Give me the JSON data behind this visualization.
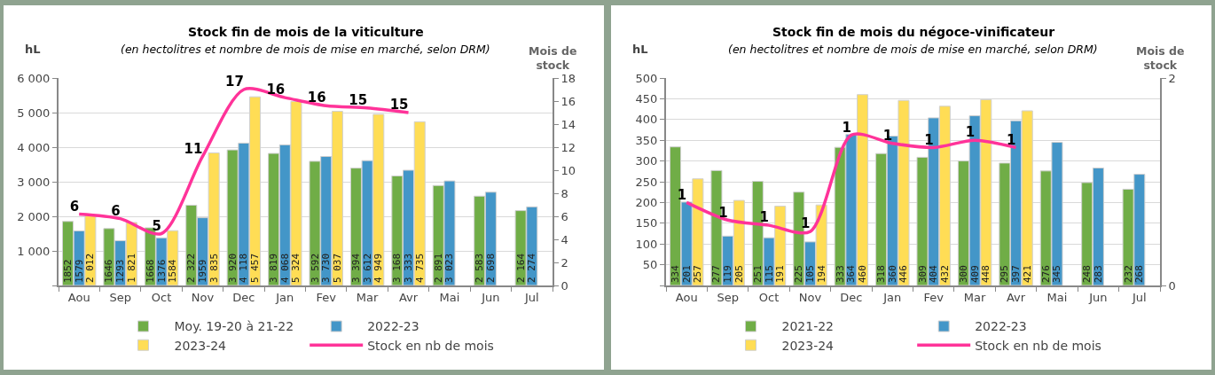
{
  "chart_data": [
    {
      "type": "bar",
      "title": "Stock fin de mois de la viticulture",
      "subtitle": "(en hectolitres et nombre de mois de mise en marché, selon DRM)",
      "ylabel": "hL",
      "y2label": "Mois de stock",
      "categories": [
        "Aou",
        "Sep",
        "Oct",
        "Nov",
        "Dec",
        "Jan",
        "Fev",
        "Mar",
        "Avr",
        "Mai",
        "Jun",
        "Jul"
      ],
      "series": [
        {
          "name": "Moy. 19-20 à 21-22",
          "color": "#70ad47",
          "values": [
            1852,
            1646,
            1668,
            2322,
            3920,
            3819,
            3592,
            3394,
            3168,
            2891,
            2583,
            2164
          ],
          "value_labels": [
            "1852",
            "1646",
            "1668",
            "2 322",
            "3 920",
            "3 819",
            "3 592",
            "3 394",
            "3 168",
            "2 891",
            "2 583",
            "2 164"
          ]
        },
        {
          "name": "2022-23",
          "color": "#4396c8",
          "values": [
            1579,
            1293,
            1376,
            1959,
            4118,
            4068,
            3730,
            3612,
            3333,
            3023,
            2698,
            2274
          ],
          "value_labels": [
            "1579",
            "1293",
            "1376",
            "1959",
            "4 118",
            "4 068",
            "3 730",
            "3 612",
            "3 333",
            "3 023",
            "2 698",
            "2 274"
          ]
        },
        {
          "name": "2023-24",
          "color": "#ffdd55",
          "values": [
            2012,
            1821,
            1584,
            3835,
            5457,
            5324,
            5037,
            4949,
            4735,
            null,
            null,
            null
          ],
          "value_labels": [
            "2 012",
            "1 821",
            "1584",
            "3 835",
            "5 457",
            "5 324",
            "5 037",
            "4 949",
            "4 735",
            null,
            null,
            null
          ]
        },
        {
          "name": "Stock en nb de mois",
          "type": "line",
          "axis": "y2",
          "color": "#ff3399",
          "values": [
            6.2,
            5.8,
            4.5,
            11.2,
            17,
            16.3,
            15.6,
            15.4,
            15,
            null,
            null,
            null
          ],
          "value_labels": [
            "6",
            "6",
            "5",
            "11",
            "17",
            "16",
            "16",
            "15",
            "15",
            null,
            null,
            null
          ]
        }
      ],
      "ylim": [
        0,
        6000
      ],
      "yticks": [
        {
          "value": 0,
          "label": null
        },
        {
          "value": 1000,
          "label": "1 000"
        },
        {
          "value": 2000,
          "label": "2 000"
        },
        {
          "value": 3000,
          "label": "3 000"
        },
        {
          "value": 4000,
          "label": "4 000"
        },
        {
          "value": 5000,
          "label": "5 000"
        },
        {
          "value": 6000,
          "label": "6 000"
        }
      ],
      "y2lim": [
        0,
        18
      ],
      "y2ticks": [
        0,
        2,
        4,
        6,
        8,
        10,
        12,
        14,
        16,
        18
      ],
      "grid": "y",
      "legend": "bottom"
    },
    {
      "type": "bar",
      "title": "Stock fin de mois du négoce-vinificateur",
      "subtitle": "(en hectolitres et nombre de mois de mise en marché, selon DRM)",
      "ylabel": "hL",
      "y2label": "Mois de stock",
      "categories": [
        "Aou",
        "Sep",
        "Oct",
        "Nov",
        "Dec",
        "Jan",
        "Fev",
        "Mar",
        "Avr",
        "Mai",
        "Jun",
        "Jul"
      ],
      "series": [
        {
          "name": "2021-22",
          "color": "#70ad47",
          "values": [
            334,
            277,
            251,
            225,
            333,
            318,
            309,
            300,
            295,
            276,
            248,
            232
          ],
          "value_labels": [
            "334",
            "277",
            "251",
            "225",
            "333",
            "318",
            "309",
            "300",
            "295",
            "276",
            "248",
            "232"
          ]
        },
        {
          "name": "2022-23",
          "color": "#4396c8",
          "values": [
            201,
            119,
            115,
            105,
            364,
            360,
            404,
            409,
            397,
            345,
            283,
            268
          ],
          "value_labels": [
            "201",
            "119",
            "115",
            "105",
            "364",
            "360",
            "404",
            "409",
            "397",
            "345",
            "283",
            "268"
          ]
        },
        {
          "name": "2023-24",
          "color": "#ffdd55",
          "values": [
            257,
            205,
            191,
            194,
            460,
            446,
            432,
            448,
            421,
            null,
            null,
            null
          ],
          "value_labels": [
            "257",
            "205",
            "191",
            "194",
            "460",
            "446",
            "432",
            "448",
            "421",
            null,
            null,
            null
          ]
        },
        {
          "name": "Stock en nb de mois",
          "type": "line",
          "axis": "y2",
          "color": "#ff3399",
          "values": [
            0.8,
            0.63,
            0.58,
            0.52,
            1.45,
            1.37,
            1.33,
            1.4,
            1.33,
            null,
            null,
            null
          ],
          "value_labels": [
            "1",
            "1",
            "1",
            "1",
            "1",
            "1",
            "1",
            "1",
            "1",
            null,
            null,
            null
          ]
        }
      ],
      "ylim": [
        0,
        500
      ],
      "yticks": [
        {
          "value": 0,
          "label": null
        },
        50,
        100,
        150,
        200,
        250,
        300,
        350,
        400,
        450,
        500
      ],
      "y2lim": [
        0,
        2
      ],
      "y2ticks": [
        0,
        2
      ],
      "grid": "y",
      "legend": "bottom"
    }
  ]
}
